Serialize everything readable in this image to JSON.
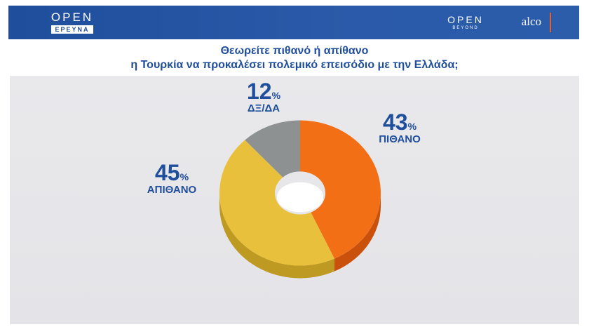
{
  "header": {
    "logo_left_main": "OPEN",
    "logo_left_tag": "ΕΡΕΥΝΑ",
    "logo_right_main": "OPEN",
    "logo_right_sub": "BEYOND",
    "logo_right_brand": "alco"
  },
  "question": {
    "line1": "Θεωρείτε πιθανό ή απίθανο",
    "line2": "η Τουρκία να προκαλέσει πολεμικό επεισόδιο με την Ελλάδα;"
  },
  "chart_data": {
    "type": "pie",
    "title": "Θεωρείτε πιθανό ή απίθανο η Τουρκία να προκαλέσει πολεμικό επεισόδιο με την Ελλάδα;",
    "unit": "%",
    "categories": [
      "ΠΙΘΑΝΟ",
      "ΑΠΙΘΑΝΟ",
      "ΔΞ/ΔΑ"
    ],
    "values": [
      43,
      45,
      12
    ],
    "colors": [
      "#f26f15",
      "#e8c03c",
      "#8e9192"
    ],
    "side_colors": [
      "#c9510c",
      "#bf9a22",
      "#6e7172"
    ],
    "legend": "none"
  }
}
